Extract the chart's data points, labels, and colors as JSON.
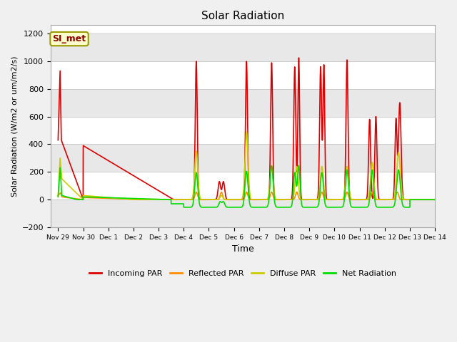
{
  "title": "Solar Radiation",
  "ylabel": "Solar Radiation (W/m2 or um/m2/s)",
  "xlabel": "Time",
  "ylim": [
    -200,
    1260
  ],
  "yticks": [
    -200,
    0,
    200,
    400,
    600,
    800,
    1000,
    1200
  ],
  "fig_bg": "#f0f0f0",
  "plot_bg": "#ffffff",
  "band_colors": [
    "#e8e8e8",
    "#ffffff"
  ],
  "annotation_text": "SI_met",
  "annotation_color": "#8b0000",
  "annotation_bg": "#ffffcc",
  "annotation_border": "#999900",
  "series": {
    "incoming_par": {
      "color": "#dd0000",
      "label": "Incoming PAR",
      "lw": 1.2
    },
    "reflected_par": {
      "color": "#ff8c00",
      "label": "Reflected PAR",
      "lw": 1.2
    },
    "diffuse_par": {
      "color": "#cccc00",
      "label": "Diffuse PAR",
      "lw": 1.2
    },
    "net_radiation": {
      "color": "#00dd00",
      "label": "Net Radiation",
      "lw": 1.2
    }
  },
  "x_labels": [
    "Nov 29",
    "Nov 30",
    "Dec 1",
    "Dec 2",
    "Dec 3",
    "Dec 4",
    "Dec 5",
    "Dec 6",
    "Dec 7",
    "Dec 8",
    "Dec 9",
    "Dec 10",
    "Dec 11",
    "Dec 12",
    "Dec 13",
    "Dec 14"
  ]
}
